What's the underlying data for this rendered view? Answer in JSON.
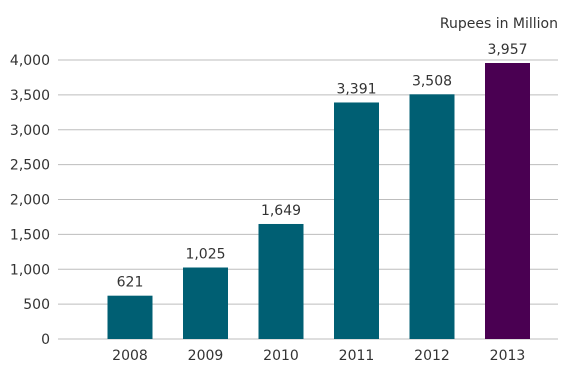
{
  "chart_data": {
    "type": "bar",
    "unit_label": "Rupees in Million",
    "categories": [
      "2008",
      "2009",
      "2010",
      "2011",
      "2012",
      "2013"
    ],
    "values": [
      621,
      1025,
      1649,
      3391,
      3508,
      3957
    ],
    "data_labels": [
      "621",
      "1,025",
      "1,649",
      "3,391",
      "3,508",
      "3,957"
    ],
    "y_ticks": [
      0,
      500,
      1000,
      1500,
      2000,
      2500,
      3000,
      3500,
      4000
    ],
    "y_tick_labels": [
      "0",
      "500",
      "1,000",
      "1,500",
      "2,000",
      "2,500",
      "3,000",
      "3,500",
      "4,000"
    ],
    "ylim": [
      0,
      4000
    ],
    "grid": true,
    "colors": {
      "bar": "#005f73",
      "highlight": "#4a0052",
      "grid": "#bdbdbd"
    },
    "highlight_index": 5
  }
}
